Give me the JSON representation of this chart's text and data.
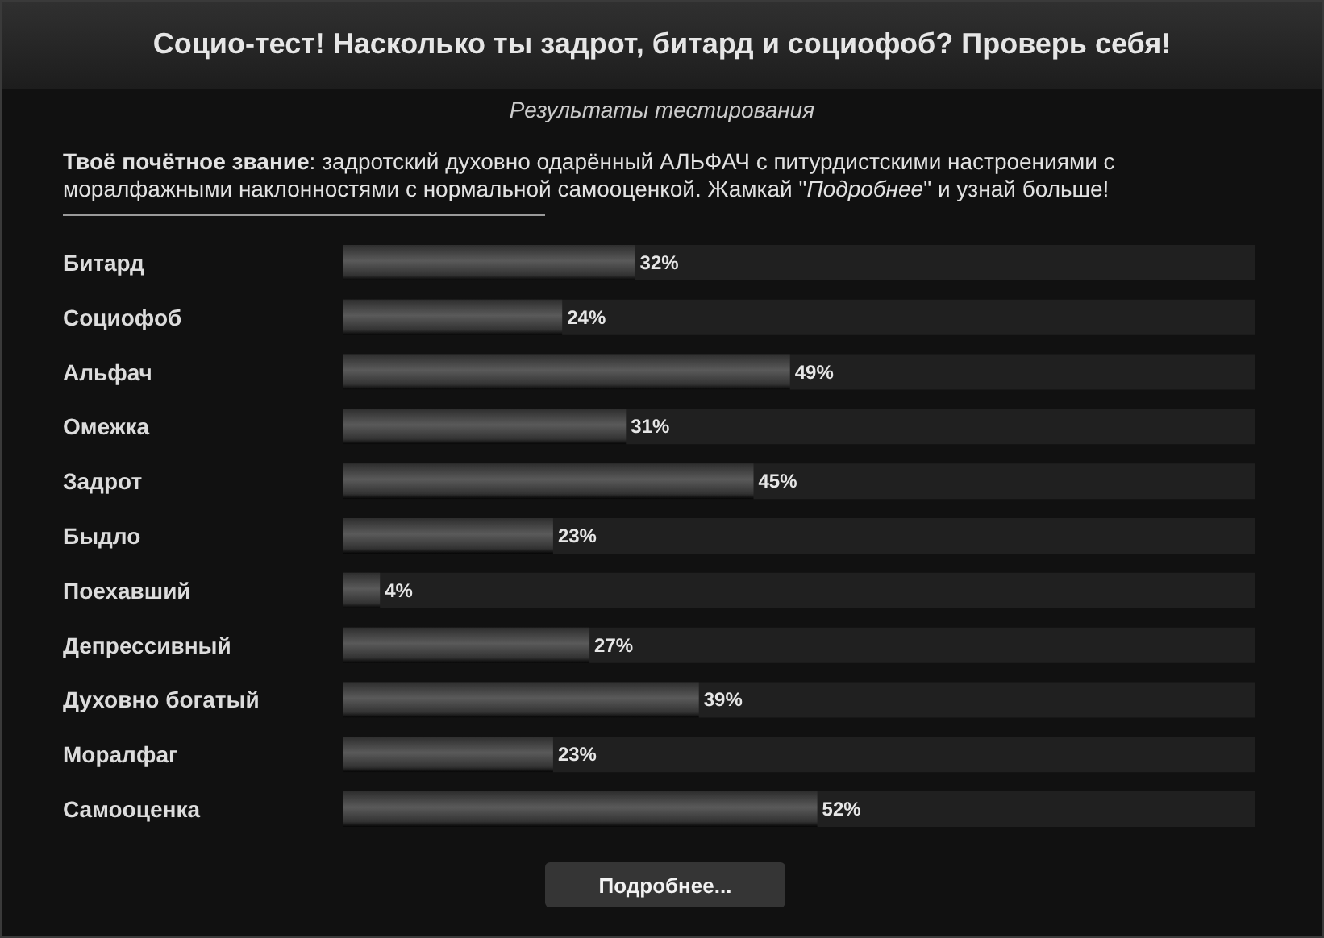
{
  "chart_data": {
    "type": "bar",
    "orientation": "horizontal",
    "title": "Социо-тест! Насколько ты задрот, битард и социофоб? Проверь себя!",
    "subtitle": "Результаты тестирования",
    "annotations": [
      "Твоё почётное звание: задротский духовно одарённый АЛЬФАЧ с питурдистскими настроениями с моралфажными наклонностями с нормальной самооценкой. Жамкай \"Подробнее\" и узнай больше!",
      "Подробнее..."
    ],
    "categories": [
      "Битард",
      "Социофоб",
      "Альфач",
      "Омежка",
      "Задрот",
      "Быдло",
      "Поехавший",
      "Депрессивный",
      "Духовно богатый",
      "Моралфаг",
      "Самооценка"
    ],
    "values": [
      32,
      24,
      49,
      31,
      45,
      23,
      4,
      27,
      39,
      23,
      52
    ],
    "value_labels": [
      "32%",
      "24%",
      "49%",
      "31%",
      "45%",
      "23%",
      "4%",
      "27%",
      "39%",
      "23%",
      "52%"
    ],
    "color": "#5a5a5a",
    "xlim": [
      0,
      100
    ],
    "tick_labels": "y"
  }
}
